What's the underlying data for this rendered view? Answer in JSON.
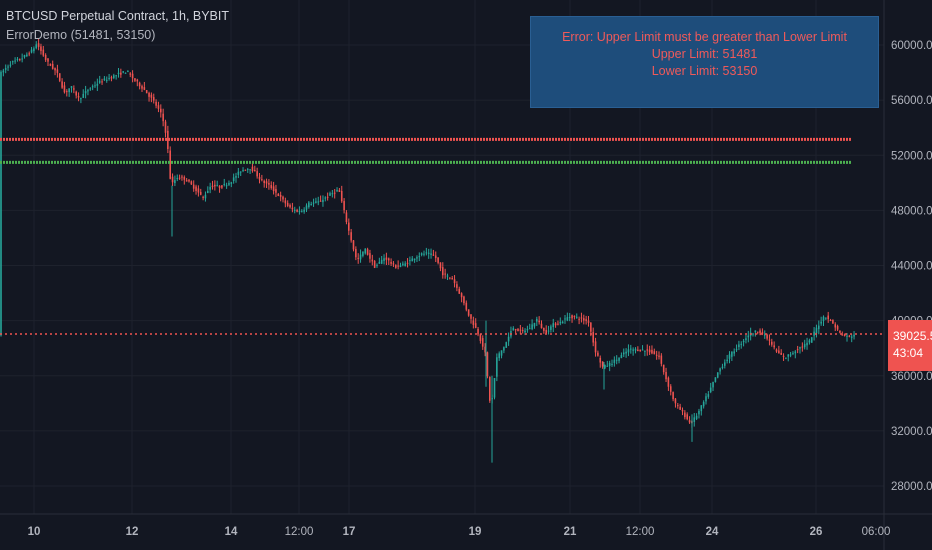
{
  "legend": {
    "symbol_line": "BTCUSD Perpetual Contract, 1h, BYBIT",
    "indicator_line": "ErrorDemo (51481, 53150)"
  },
  "error_box": {
    "line1": "Error: Upper Limit must be greater than Lower Limit",
    "line2": "Upper Limit: 51481",
    "line3": "Lower Limit: 53150"
  },
  "price_tag": {
    "price": "39025.5",
    "countdown": "43:04"
  },
  "colors": {
    "background": "#131722",
    "grid": "#1e222d",
    "up_candle": "#26a69a",
    "down_candle": "#ef5350",
    "upper_line": "#ef5350",
    "lower_line": "#4caf50",
    "last_price_line": "#ef5350",
    "axis_text": "#b2b5be"
  },
  "chart_data": {
    "type": "candlestick",
    "y_ticks": [
      "60000.0",
      "56000.0",
      "52000.0",
      "48000.0",
      "44000.0",
      "40000.0",
      "36000.0",
      "32000.0",
      "28000.0"
    ],
    "y_tick_values": [
      60000,
      56000,
      52000,
      48000,
      44000,
      40000,
      36000,
      32000,
      28000
    ],
    "x_ticks": [
      "10",
      "12",
      "14",
      "12:00",
      "17",
      "19",
      "21",
      "12:00",
      "24",
      "26",
      "06:00"
    ],
    "ylim": [
      26000,
      63000
    ],
    "last_price": 39025.5,
    "upper_limit_line": 53150,
    "lower_limit_line": 51481,
    "price_path": [
      [
        0,
        57800
      ],
      [
        12,
        58700
      ],
      [
        22,
        59000
      ],
      [
        32,
        59500
      ],
      [
        38,
        60100
      ],
      [
        48,
        58800
      ],
      [
        58,
        58000
      ],
      [
        66,
        56500
      ],
      [
        72,
        57000
      ],
      [
        80,
        56100
      ],
      [
        90,
        56800
      ],
      [
        100,
        57300
      ],
      [
        110,
        57600
      ],
      [
        120,
        57900
      ],
      [
        128,
        58100
      ],
      [
        135,
        57500
      ],
      [
        145,
        56800
      ],
      [
        155,
        55900
      ],
      [
        163,
        54900
      ],
      [
        168,
        53300
      ],
      [
        172,
        49800
      ],
      [
        178,
        50400
      ],
      [
        186,
        50300
      ],
      [
        196,
        49600
      ],
      [
        204,
        48900
      ],
      [
        212,
        49800
      ],
      [
        222,
        49700
      ],
      [
        232,
        50100
      ],
      [
        242,
        50900
      ],
      [
        252,
        51100
      ],
      [
        262,
        50200
      ],
      [
        272,
        49700
      ],
      [
        282,
        48900
      ],
      [
        292,
        48100
      ],
      [
        302,
        47900
      ],
      [
        310,
        48500
      ],
      [
        320,
        48600
      ],
      [
        330,
        49100
      ],
      [
        340,
        49500
      ],
      [
        350,
        46500
      ],
      [
        358,
        44300
      ],
      [
        366,
        45200
      ],
      [
        376,
        43900
      ],
      [
        386,
        44600
      ],
      [
        396,
        43900
      ],
      [
        406,
        44100
      ],
      [
        416,
        44600
      ],
      [
        426,
        44900
      ],
      [
        436,
        44700
      ],
      [
        444,
        43400
      ],
      [
        454,
        43000
      ],
      [
        462,
        41800
      ],
      [
        470,
        40400
      ],
      [
        478,
        39300
      ],
      [
        486,
        37800
      ],
      [
        492,
        33500
      ],
      [
        498,
        37300
      ],
      [
        506,
        38200
      ],
      [
        514,
        39500
      ],
      [
        522,
        39200
      ],
      [
        530,
        39400
      ],
      [
        538,
        40100
      ],
      [
        546,
        39100
      ],
      [
        554,
        39700
      ],
      [
        562,
        39900
      ],
      [
        570,
        40300
      ],
      [
        580,
        40200
      ],
      [
        590,
        39900
      ],
      [
        596,
        37900
      ],
      [
        604,
        36600
      ],
      [
        612,
        36900
      ],
      [
        620,
        37300
      ],
      [
        630,
        37900
      ],
      [
        640,
        37900
      ],
      [
        650,
        37800
      ],
      [
        660,
        37400
      ],
      [
        668,
        35600
      ],
      [
        676,
        34000
      ],
      [
        684,
        33300
      ],
      [
        692,
        32500
      ],
      [
        700,
        33400
      ],
      [
        710,
        34800
      ],
      [
        720,
        36400
      ],
      [
        730,
        37400
      ],
      [
        740,
        38200
      ],
      [
        750,
        39000
      ],
      [
        760,
        39300
      ],
      [
        770,
        38600
      ],
      [
        778,
        37700
      ],
      [
        786,
        37300
      ],
      [
        794,
        37700
      ],
      [
        802,
        38100
      ],
      [
        810,
        38400
      ],
      [
        818,
        39500
      ],
      [
        826,
        40400
      ],
      [
        834,
        39800
      ],
      [
        842,
        39000
      ],
      [
        850,
        38800
      ],
      [
        856,
        39025.5
      ]
    ]
  }
}
